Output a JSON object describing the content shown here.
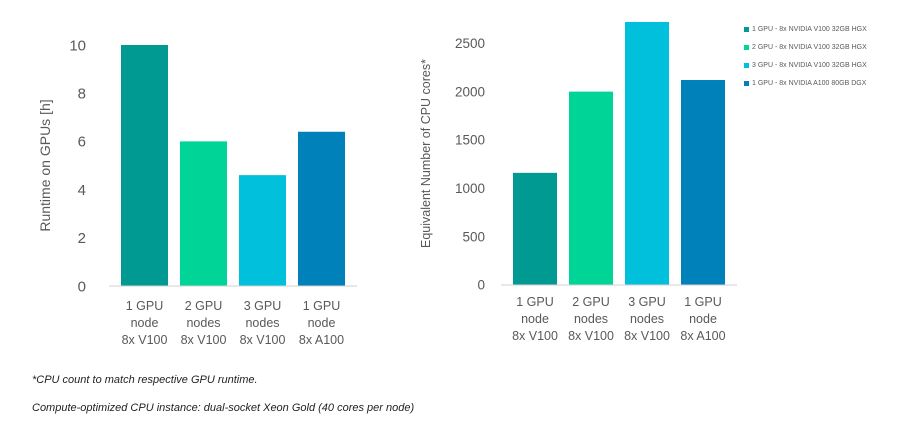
{
  "chart_data": [
    {
      "type": "bar",
      "title": "",
      "xlabel": "",
      "ylabel": "Runtime on GPUs [h]",
      "categories": [
        [
          "1 GPU",
          "node",
          "8x V100"
        ],
        [
          "2 GPU",
          "nodes",
          "8x V100"
        ],
        [
          "3 GPU",
          "nodes",
          "8x V100"
        ],
        [
          "1 GPU",
          "node",
          "8x A100"
        ]
      ],
      "values": [
        10,
        6,
        4.6,
        6.4
      ],
      "colors": [
        "#009a93",
        "#00d496",
        "#00c0dc",
        "#0081b9"
      ],
      "ylim": [
        0,
        10
      ],
      "yticks": [
        0,
        2,
        4,
        6,
        8,
        10
      ],
      "grid": false
    },
    {
      "type": "bar",
      "title": "",
      "xlabel": "",
      "ylabel": "Equivalent Number of CPU cores*",
      "categories": [
        [
          "1 GPU",
          "node",
          "8x V100"
        ],
        [
          "2 GPU",
          "nodes",
          "8x V100"
        ],
        [
          "3 GPU",
          "nodes",
          "8x V100"
        ],
        [
          "1 GPU",
          "node",
          "8x A100"
        ]
      ],
      "values": [
        1160,
        2000,
        2720,
        2120
      ],
      "colors": [
        "#009a93",
        "#00d496",
        "#00c0dc",
        "#0081b9"
      ],
      "ylim": [
        0,
        2720
      ],
      "yticks": [
        0,
        500,
        1000,
        1500,
        2000,
        2500
      ],
      "grid": false,
      "legend_position": "top-right",
      "legend": [
        {
          "label": "1 GPU - 8x NVIDIA V100 32GB HGX",
          "color": "#009a93"
        },
        {
          "label": "2 GPU - 8x NVIDIA V100 32GB HGX",
          "color": "#00d496"
        },
        {
          "label": "3 GPU - 8x NVIDIA V100 32GB HGX",
          "color": "#00c0dc"
        },
        {
          "label": "1 GPU - 8x NVIDIA A100 80GB DGX",
          "color": "#0081b9"
        }
      ]
    }
  ],
  "footnotes": {
    "note1": "*CPU count to match respective GPU runtime.",
    "note2": "Compute-optimized CPU instance: dual-socket Xeon Gold (40 cores per node)"
  }
}
